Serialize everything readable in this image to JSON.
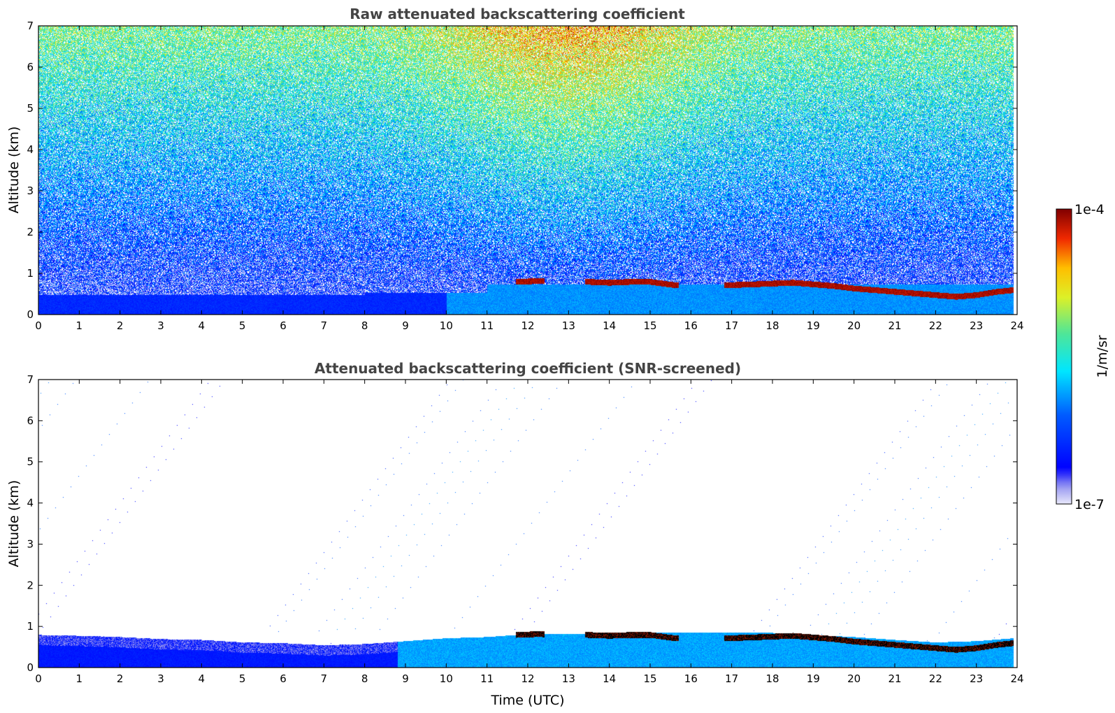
{
  "chart_data": [
    {
      "type": "heatmap",
      "title": "Raw attenuated backscattering coefficient",
      "xlabel": "",
      "ylabel": "Altitude (km)",
      "xlim": [
        0,
        24
      ],
      "ylim": [
        0,
        7
      ],
      "xticks": [
        0,
        1,
        2,
        3,
        4,
        5,
        6,
        7,
        8,
        9,
        10,
        11,
        12,
        13,
        14,
        15,
        16,
        17,
        18,
        19,
        20,
        21,
        22,
        23,
        24
      ],
      "yticks": [
        0,
        1,
        2,
        3,
        4,
        5,
        6,
        7
      ],
      "color_scale": "log",
      "noise_level": "high",
      "cloud_layer_km": [
        [
          11.7,
          0.8
        ],
        [
          12.2,
          0.82
        ],
        [
          13.5,
          0.8
        ],
        [
          14.0,
          0.78
        ],
        [
          14.5,
          0.8
        ],
        [
          15.0,
          0.8
        ],
        [
          15.6,
          0.72
        ],
        [
          16.9,
          0.72
        ],
        [
          17.5,
          0.74
        ],
        [
          18.0,
          0.76
        ],
        [
          18.5,
          0.78
        ],
        [
          19.0,
          0.74
        ],
        [
          19.5,
          0.7
        ],
        [
          20.0,
          0.64
        ],
        [
          20.5,
          0.6
        ],
        [
          21.0,
          0.56
        ],
        [
          21.5,
          0.52
        ],
        [
          22.0,
          0.48
        ],
        [
          22.5,
          0.44
        ],
        [
          23.0,
          0.48
        ],
        [
          23.5,
          0.56
        ],
        [
          23.9,
          0.6
        ]
      ]
    },
    {
      "type": "heatmap",
      "title": "Attenuated backscattering coefficient (SNR-screened)",
      "xlabel": "Time (UTC)",
      "ylabel": "Altitude (km)",
      "xlim": [
        0,
        24
      ],
      "ylim": [
        0,
        7
      ],
      "xticks": [
        0,
        1,
        2,
        3,
        4,
        5,
        6,
        7,
        8,
        9,
        10,
        11,
        12,
        13,
        14,
        15,
        16,
        17,
        18,
        19,
        20,
        21,
        22,
        23,
        24
      ],
      "yticks": [
        0,
        1,
        2,
        3,
        4,
        5,
        6,
        7
      ],
      "color_scale": "log",
      "noise_level": "screened",
      "boundary_layer_top_km": [
        [
          0,
          0.8
        ],
        [
          1,
          0.78
        ],
        [
          2,
          0.75
        ],
        [
          3,
          0.7
        ],
        [
          4,
          0.68
        ],
        [
          5,
          0.62
        ],
        [
          6,
          0.6
        ],
        [
          7,
          0.55
        ],
        [
          8,
          0.58
        ],
        [
          9,
          0.65
        ],
        [
          10,
          0.72
        ],
        [
          11,
          0.75
        ],
        [
          12,
          0.82
        ],
        [
          13,
          0.82
        ],
        [
          14,
          0.85
        ],
        [
          15,
          0.85
        ],
        [
          16,
          0.85
        ],
        [
          17,
          0.85
        ],
        [
          18,
          0.85
        ],
        [
          19,
          0.8
        ],
        [
          20,
          0.75
        ],
        [
          21,
          0.68
        ],
        [
          22,
          0.62
        ],
        [
          23,
          0.65
        ],
        [
          23.9,
          0.72
        ]
      ],
      "cloud_layer_km": [
        [
          11.7,
          0.8
        ],
        [
          12.2,
          0.82
        ],
        [
          13.5,
          0.8
        ],
        [
          14.0,
          0.78
        ],
        [
          14.5,
          0.8
        ],
        [
          15.0,
          0.8
        ],
        [
          15.6,
          0.72
        ],
        [
          16.9,
          0.72
        ],
        [
          17.5,
          0.74
        ],
        [
          18.0,
          0.76
        ],
        [
          18.5,
          0.78
        ],
        [
          19.0,
          0.74
        ],
        [
          19.5,
          0.7
        ],
        [
          20.0,
          0.64
        ],
        [
          20.5,
          0.6
        ],
        [
          21.0,
          0.56
        ],
        [
          21.5,
          0.52
        ],
        [
          22.0,
          0.48
        ],
        [
          22.5,
          0.44
        ],
        [
          23.0,
          0.48
        ],
        [
          23.5,
          0.56
        ],
        [
          23.9,
          0.6
        ]
      ]
    }
  ],
  "colorbar": {
    "label": "1/m/sr",
    "max_label": "1e-4",
    "min_label": "1e-7",
    "range": [
      1e-07,
      0.0001
    ],
    "scale": "log",
    "colormap": [
      "#ffffff",
      "#0000ff",
      "#00ffff",
      "#ffff00",
      "#ff0000",
      "#7f0000"
    ]
  }
}
